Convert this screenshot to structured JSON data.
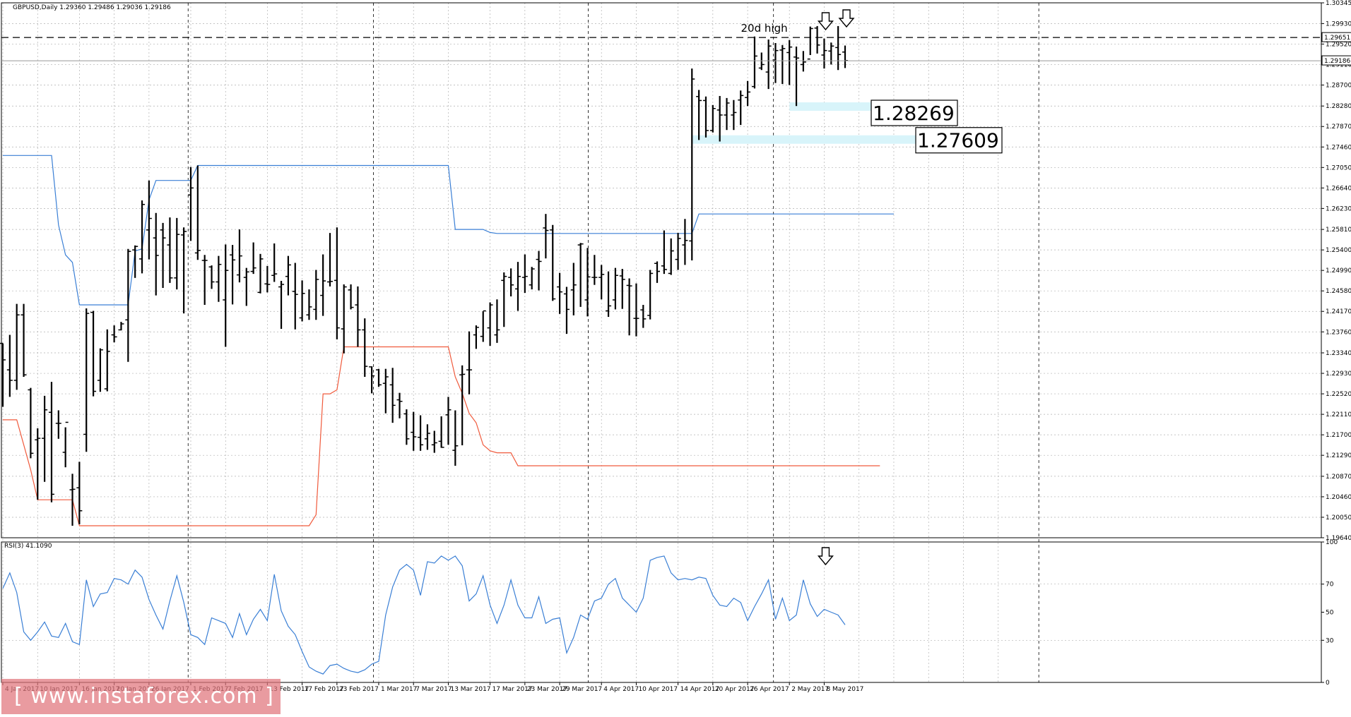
{
  "symbol_header": "GBPUSD,Daily  1.29360 1.29486 1.29036 1.29186",
  "rsi_header": "RSI(3) 41.1090",
  "watermark": "[ www.instaforex.com ]",
  "colors": {
    "upper_channel": "#3a7fd5",
    "lower_channel": "#f05a3c",
    "rsi_line": "#3a7fd5",
    "support_band": "#d8f4fa",
    "grid": "#b0b0b0",
    "bars": "#000000"
  },
  "chart_data": [
    {
      "type": "ohlc",
      "title": "GBPUSD,Daily  1.29360 1.29486 1.29036 1.29186",
      "ylim": [
        1.1964,
        1.30345
      ],
      "y_ticks": [
        "1.30345",
        "1.29930",
        "1.29520",
        "1.29110",
        "1.28700",
        "1.28280",
        "1.27870",
        "1.27460",
        "1.27050",
        "1.26640",
        "1.26230",
        "1.25810",
        "1.25400",
        "1.24990",
        "1.24580",
        "1.24170",
        "1.23760",
        "1.23340",
        "1.22930",
        "1.22520",
        "1.22110",
        "1.21700",
        "1.21290",
        "1.20870",
        "1.20460",
        "1.20050",
        "1.19640"
      ],
      "x_labels": [
        "4 Jan 2017",
        "10 Jan 2017",
        "16 Jan 2017",
        "20 Jan 2017",
        "26 Jan 2017",
        "1 Feb 2017",
        "7 Feb 2017",
        "13 Feb 2017",
        "17 Feb 2017",
        "23 Feb 2017",
        "1 Mar 2017",
        "7 Mar 2017",
        "13 Mar 2017",
        "17 Mar 2017",
        "23 Mar 2017",
        "29 Mar 2017",
        "4 Apr 2017",
        "10 Apr 2017",
        "14 Apr 2017",
        "20 Apr 2017",
        "26 Apr 2017",
        "2 May 2017",
        "8 May 2017"
      ],
      "ohlc": [
        [
          1.2353,
          1.2353,
          1.2226,
          1.232
        ],
        [
          1.23,
          1.237,
          1.2246,
          1.2279
        ],
        [
          1.2279,
          1.2432,
          1.226,
          1.241
        ],
        [
          1.241,
          1.2432,
          1.2286,
          1.229
        ],
        [
          1.226,
          1.2264,
          1.2123,
          1.2133
        ],
        [
          1.216,
          1.2183,
          1.204,
          1.2163
        ],
        [
          1.2163,
          1.2248,
          1.2076,
          1.222
        ],
        [
          1.2215,
          1.2276,
          1.2035,
          1.2051
        ],
        [
          1.2193,
          1.2219,
          1.2162,
          1.2193
        ],
        [
          1.2135,
          1.2185,
          1.2105,
          1.2195
        ],
        [
          1.206,
          1.2092,
          1.1988,
          1.2061
        ],
        [
          1.2064,
          1.2116,
          1.1991,
          1.2018
        ],
        [
          1.2171,
          1.2423,
          1.2136,
          1.2413
        ],
        [
          1.2415,
          1.2418,
          1.2247,
          1.2257
        ],
        [
          1.2279,
          1.2343,
          1.2256,
          1.234
        ],
        [
          1.2262,
          1.2381,
          1.2257,
          1.2337
        ],
        [
          1.237,
          1.2389,
          1.2355,
          1.2366
        ],
        [
          1.238,
          1.2396,
          1.2379,
          1.2392
        ],
        [
          1.24,
          1.2542,
          1.2316,
          1.2537
        ],
        [
          1.254,
          1.2549,
          1.2484,
          1.2547
        ],
        [
          1.2522,
          1.2639,
          1.2493,
          1.2631
        ],
        [
          1.258,
          1.2679,
          1.2521,
          1.2603
        ],
        [
          1.2564,
          1.2614,
          1.2449,
          1.2529
        ],
        [
          1.258,
          1.2594,
          1.2464,
          1.2564
        ],
        [
          1.255,
          1.2605,
          1.2474,
          1.2484
        ],
        [
          1.2484,
          1.2604,
          1.2461,
          1.2571
        ],
        [
          1.257,
          1.2585,
          1.2413,
          1.2577
        ],
        [
          1.265,
          1.2706,
          1.2558,
          1.2664
        ],
        [
          1.2534,
          1.2709,
          1.252,
          1.2539
        ],
        [
          1.2519,
          1.253,
          1.243,
          1.2519
        ],
        [
          1.2506,
          1.2509,
          1.2462,
          1.2476
        ],
        [
          1.2476,
          1.2528,
          1.2436,
          1.2511
        ],
        [
          1.244,
          1.2551,
          1.2346,
          1.2499
        ],
        [
          1.253,
          1.255,
          1.2431,
          1.252
        ],
        [
          1.249,
          1.2581,
          1.2475,
          1.2528
        ],
        [
          1.2485,
          1.2504,
          1.2428,
          1.2496
        ],
        [
          1.2497,
          1.2555,
          1.2492,
          1.2504
        ],
        [
          1.2455,
          1.2532,
          1.2453,
          1.2522
        ],
        [
          1.2472,
          1.2508,
          1.2455,
          1.2471
        ],
        [
          1.2489,
          1.2553,
          1.2476,
          1.2492
        ],
        [
          1.2466,
          1.2478,
          1.2382,
          1.2471
        ],
        [
          1.2487,
          1.2528,
          1.2449,
          1.251
        ],
        [
          1.2457,
          1.2514,
          1.2381,
          1.2451
        ],
        [
          1.2404,
          1.2479,
          1.2397,
          1.2453
        ],
        [
          1.241,
          1.2461,
          1.24,
          1.2426
        ],
        [
          1.2421,
          1.25,
          1.24,
          1.2481
        ],
        [
          1.2449,
          1.2531,
          1.2408,
          1.2478
        ],
        [
          1.2476,
          1.2574,
          1.2467,
          1.2477
        ],
        [
          1.2479,
          1.2585,
          1.2361,
          1.2384
        ],
        [
          1.2382,
          1.2471,
          1.2333,
          1.2466
        ],
        [
          1.246,
          1.2471,
          1.2421,
          1.2425
        ],
        [
          1.243,
          1.2467,
          1.2346,
          1.238
        ],
        [
          1.238,
          1.2403,
          1.2286,
          1.2307
        ],
        [
          1.2306,
          1.2307,
          1.2253,
          1.2288
        ],
        [
          1.23,
          1.2302,
          1.2266,
          1.227
        ],
        [
          1.2273,
          1.2302,
          1.2213,
          1.2286
        ],
        [
          1.227,
          1.2304,
          1.2194,
          1.2229
        ],
        [
          1.224,
          1.2254,
          1.2203,
          1.2237
        ],
        [
          1.2212,
          1.2221,
          1.215,
          1.2162
        ],
        [
          1.2175,
          1.2216,
          1.2138,
          1.2166
        ],
        [
          1.2165,
          1.2209,
          1.2138,
          1.215
        ],
        [
          1.2162,
          1.2191,
          1.214,
          1.2173
        ],
        [
          1.215,
          1.2178,
          1.2134,
          1.2154
        ],
        [
          1.2157,
          1.2207,
          1.2144,
          1.2145
        ],
        [
          1.221,
          1.2246,
          1.215,
          1.222
        ],
        [
          1.2139,
          1.2219,
          1.2108,
          1.2148
        ],
        [
          1.229,
          1.2309,
          1.2149,
          1.2291
        ],
        [
          1.23,
          1.2377,
          1.2251,
          1.23
        ],
        [
          1.237,
          1.2389,
          1.2342,
          1.2385
        ],
        [
          1.2367,
          1.2417,
          1.2356,
          1.2418
        ],
        [
          1.2384,
          1.2435,
          1.2348,
          1.243
        ],
        [
          1.237,
          1.2441,
          1.2354,
          1.238
        ],
        [
          1.2479,
          1.2495,
          1.2386,
          1.2487
        ],
        [
          1.2485,
          1.2503,
          1.2447,
          1.247
        ],
        [
          1.2462,
          1.2516,
          1.2418,
          1.2487
        ],
        [
          1.2485,
          1.2531,
          1.2454,
          1.2487
        ],
        [
          1.247,
          1.2506,
          1.2461,
          1.2502
        ],
        [
          1.2521,
          1.2538,
          1.2459,
          1.2517
        ],
        [
          1.2584,
          1.2612,
          1.2523,
          1.2579
        ],
        [
          1.258,
          1.259,
          1.2438,
          1.2442
        ],
        [
          1.2466,
          1.2494,
          1.2412,
          1.2456
        ],
        [
          1.2452,
          1.2466,
          1.2372,
          1.2421
        ],
        [
          1.246,
          1.2514,
          1.2409,
          1.247
        ],
        [
          1.255,
          1.2554,
          1.2426,
          1.2552
        ],
        [
          1.244,
          1.2544,
          1.2407,
          1.2486
        ],
        [
          1.2485,
          1.253,
          1.247,
          1.2485
        ],
        [
          1.2485,
          1.251,
          1.2441,
          1.2491
        ],
        [
          1.2418,
          1.2497,
          1.2406,
          1.2428
        ],
        [
          1.244,
          1.2504,
          1.2421,
          1.2489
        ],
        [
          1.2488,
          1.2502,
          1.2422,
          1.2481
        ],
        [
          1.2469,
          1.2483,
          1.2369,
          1.2468
        ],
        [
          1.2403,
          1.2473,
          1.2367,
          1.2403
        ],
        [
          1.242,
          1.243,
          1.2384,
          1.2402
        ],
        [
          1.2409,
          1.25,
          1.2401,
          1.2493
        ],
        [
          1.2513,
          1.2517,
          1.2474,
          1.2497
        ],
        [
          1.2508,
          1.2579,
          1.2492,
          1.2501
        ],
        [
          1.2493,
          1.2563,
          1.249,
          1.2538
        ],
        [
          1.2521,
          1.2574,
          1.25,
          1.2563
        ],
        [
          1.255,
          1.2602,
          1.251,
          1.2559
        ],
        [
          1.2558,
          1.2903,
          1.2519,
          1.2882
        ],
        [
          1.2847,
          1.286,
          1.276,
          1.2839
        ],
        [
          1.2839,
          1.2847,
          1.2765,
          1.2779
        ],
        [
          1.2779,
          1.283,
          1.2775,
          1.2823
        ],
        [
          1.282,
          1.2848,
          1.2757,
          1.281
        ],
        [
          1.281,
          1.2844,
          1.278,
          1.2834
        ],
        [
          1.281,
          1.284,
          1.278,
          1.2815
        ],
        [
          1.284,
          1.2859,
          1.279,
          1.2849
        ],
        [
          1.2845,
          1.2878,
          1.2828,
          1.2856
        ],
        [
          1.2867,
          1.2967,
          1.2863,
          1.2928
        ],
        [
          1.2904,
          1.2935,
          1.29,
          1.2911
        ],
        [
          1.2896,
          1.2961,
          1.2862,
          1.2948
        ],
        [
          1.292,
          1.2954,
          1.2874,
          1.2939
        ],
        [
          1.294,
          1.295,
          1.2872,
          1.2943
        ],
        [
          1.2935,
          1.296,
          1.287,
          1.2946
        ],
        [
          1.2926,
          1.2947,
          1.2828,
          1.2924
        ],
        [
          1.2911,
          1.2938,
          1.2897,
          1.2916
        ],
        [
          1.2922,
          1.2987,
          1.293,
          1.2983
        ],
        [
          1.2984,
          1.2988,
          1.2933,
          1.295
        ],
        [
          1.293,
          1.2963,
          1.2903,
          1.2939
        ],
        [
          1.2938,
          1.2955,
          1.2911,
          1.2948
        ],
        [
          1.2945,
          1.2988,
          1.29,
          1.2931
        ],
        [
          1.2936,
          1.2949,
          1.2904,
          1.2919
        ]
      ],
      "upper_channel": [
        1.2729,
        1.2729,
        1.2729,
        1.2729,
        1.2729,
        1.2729,
        1.2729,
        1.2729,
        1.259,
        1.253,
        1.2515,
        1.243,
        1.243,
        1.243,
        1.243,
        1.243,
        1.243,
        1.243,
        1.243,
        1.2538,
        1.2542,
        1.264,
        1.2679,
        1.2679,
        1.2679,
        1.2679,
        1.2679,
        1.2679,
        1.2709,
        1.2709,
        1.2709,
        1.2709,
        1.2709,
        1.2709,
        1.2709,
        1.2709,
        1.2709,
        1.2709,
        1.2709,
        1.2709,
        1.2709,
        1.2709,
        1.2709,
        1.2709,
        1.2709,
        1.2709,
        1.2709,
        1.2709,
        1.2709,
        1.2709,
        1.2709,
        1.2709,
        1.2709,
        1.2709,
        1.2709,
        1.2709,
        1.2709,
        1.2709,
        1.2709,
        1.2709,
        1.2709,
        1.2709,
        1.2709,
        1.2709,
        1.2709,
        1.2581,
        1.2581,
        1.2581,
        1.2581,
        1.2581,
        1.2575,
        1.2573,
        1.2573,
        1.2573,
        1.2573,
        1.2573,
        1.2573,
        1.2573,
        1.2573,
        1.2573,
        1.2573,
        1.2573,
        1.2573,
        1.2573,
        1.2573,
        1.2573,
        1.2573,
        1.2573,
        1.2573,
        1.2573,
        1.2573,
        1.2573,
        1.2573,
        1.2573,
        1.2573,
        1.2573,
        1.2573,
        1.2573,
        1.2573,
        1.2573,
        1.2612,
        1.2612,
        1.2612,
        1.2612,
        1.2612,
        1.2612,
        1.2612,
        1.2612,
        1.2612,
        1.2612,
        1.2612,
        1.2612,
        1.2612,
        1.2612,
        1.2612,
        1.2612,
        1.2612,
        1.2612,
        1.2612,
        1.2612,
        1.2612,
        1.2612,
        1.2612,
        1.2612,
        1.2612,
        1.2612,
        1.2612,
        1.2612,
        1.2612
      ],
      "lower_channel": [
        1.22,
        1.22,
        1.22,
        1.215,
        1.21,
        1.204,
        1.204,
        1.204,
        1.204,
        1.204,
        1.204,
        1.1988,
        1.1988,
        1.1988,
        1.1988,
        1.1988,
        1.1988,
        1.1988,
        1.1988,
        1.1988,
        1.1988,
        1.1988,
        1.1988,
        1.1988,
        1.1988,
        1.1988,
        1.1988,
        1.1988,
        1.1988,
        1.1988,
        1.1988,
        1.1988,
        1.1988,
        1.1988,
        1.1988,
        1.1988,
        1.1988,
        1.1988,
        1.1988,
        1.1988,
        1.1988,
        1.1988,
        1.1988,
        1.1988,
        1.1988,
        1.201,
        1.2252,
        1.2252,
        1.226,
        1.2346,
        1.2346,
        1.2346,
        1.2346,
        1.2346,
        1.2346,
        1.2346,
        1.2346,
        1.2346,
        1.2346,
        1.2346,
        1.2346,
        1.2346,
        1.2346,
        1.2346,
        1.2346,
        1.2286,
        1.2253,
        1.2213,
        1.2194,
        1.215,
        1.2138,
        1.2134,
        1.2134,
        1.2134,
        1.2108,
        1.2108,
        1.2108,
        1.2108,
        1.2108,
        1.2108,
        1.2108,
        1.2108,
        1.2108,
        1.2108,
        1.2108,
        1.2108,
        1.2108,
        1.2108,
        1.2108,
        1.2108,
        1.2108,
        1.2108,
        1.2108,
        1.2108,
        1.2108,
        1.2108,
        1.2108,
        1.2108,
        1.2108,
        1.2108,
        1.2108,
        1.2108,
        1.2108,
        1.2108,
        1.2108,
        1.2108,
        1.2108,
        1.2108,
        1.2108,
        1.2108,
        1.2108,
        1.2108,
        1.2108,
        1.2108,
        1.2108,
        1.2108,
        1.2108,
        1.2108,
        1.2108,
        1.2108,
        1.2108,
        1.2108,
        1.2108,
        1.2108,
        1.2108,
        1.2108,
        1.2108
      ],
      "annotations": {
        "ref_line_dashed": 1.29651,
        "ref_line_solid": 1.29186,
        "label_20d_high": "20d high",
        "support_1": "1.28269",
        "support_2": "1.27609",
        "price_box_1": "1.29651",
        "price_box_2": "1.29186"
      }
    },
    {
      "type": "line",
      "title": "RSI(3) 41.1090",
      "ylim": [
        0,
        100
      ],
      "y_ticks": [
        "100",
        "70",
        "50",
        "30",
        "0"
      ],
      "values": [
        67,
        78,
        64,
        36,
        30,
        36,
        43,
        33,
        32,
        42,
        29,
        27,
        73,
        54,
        63,
        64,
        74,
        73,
        70,
        80,
        75,
        59,
        48,
        38,
        58,
        76,
        57,
        34,
        32,
        27,
        46,
        44,
        42,
        32,
        49,
        34,
        45,
        52,
        44,
        77,
        51,
        40,
        34,
        22,
        11,
        8,
        6,
        12,
        13,
        10,
        8,
        7,
        9,
        13,
        15,
        48,
        68,
        80,
        84,
        80,
        62,
        86,
        85,
        90,
        87,
        90,
        83,
        58,
        63,
        76,
        55,
        42,
        55,
        73,
        55,
        46,
        46,
        61,
        42,
        45,
        46,
        21,
        32,
        48,
        45,
        58,
        60,
        70,
        74,
        60,
        55,
        50,
        60,
        87,
        89,
        90,
        78,
        73,
        74,
        73,
        75,
        74,
        62,
        55,
        54,
        60,
        57,
        44,
        54,
        63,
        73,
        45,
        60,
        44,
        48,
        73,
        56,
        47,
        52,
        50,
        48,
        41
      ]
    }
  ]
}
